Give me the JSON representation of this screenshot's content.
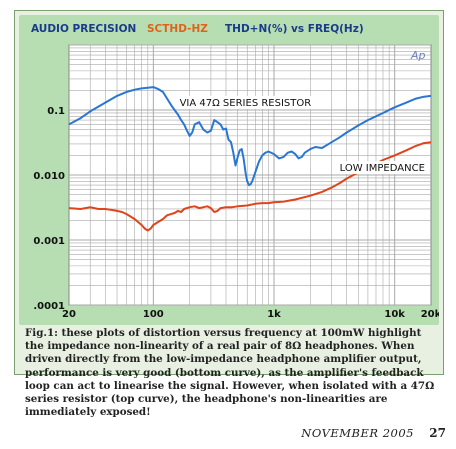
{
  "header": {
    "brand": "AUDIO PRECISION",
    "code": "SCTHD-HZ",
    "title": "THD+N(%) vs FREQ(Hz)"
  },
  "logo_text": "Ap",
  "caption": "Fig.1: these plots of distortion versus frequency at 100mW highlight the impedance non-linearity of a real pair of 8Ω headphones. When driven directly from the low-impedance headphone amplifier output, performance is very good (bottom curve), as the amplifier's feedback loop can act to linearise the signal. However, when isolated with a 47Ω series resistor (top curve), the headphone's non-linearities are immediately exposed!",
  "footer": {
    "date": "NOVEMBER 2005",
    "page": "27"
  },
  "colors": {
    "panel_bg": "#b6deb2",
    "plot_bg": "#ffffff",
    "grid": "#a9a9a9",
    "series_top": "#2a76d2",
    "series_bottom": "#e0441a",
    "header_blue": "#1a3a8a",
    "header_orange": "#e0621a"
  },
  "chart_data": {
    "type": "line",
    "x_scale": "log",
    "y_scale": "log",
    "xlim": [
      20,
      20000
    ],
    "ylim": [
      0.0001,
      1
    ],
    "x_tick_labels": [
      {
        "value": 20,
        "label": "20"
      },
      {
        "value": 100,
        "label": "100"
      },
      {
        "value": 1000,
        "label": "1k"
      },
      {
        "value": 10000,
        "label": "10k"
      },
      {
        "value": 20000,
        "label": "20k"
      }
    ],
    "y_tick_labels": [
      {
        "value": 0.1,
        "label": "0.1"
      },
      {
        "value": 0.01,
        "label": "0.010"
      },
      {
        "value": 0.001,
        "label": "0.001"
      },
      {
        "value": 0.0001,
        "label": ".0001"
      }
    ],
    "grid": true,
    "series": [
      {
        "name": "VIA 47Ω SERIES RESISTOR",
        "color": "#2a76d2",
        "points": [
          [
            20,
            0.06
          ],
          [
            25,
            0.075
          ],
          [
            30,
            0.095
          ],
          [
            40,
            0.13
          ],
          [
            50,
            0.165
          ],
          [
            60,
            0.19
          ],
          [
            70,
            0.205
          ],
          [
            80,
            0.215
          ],
          [
            90,
            0.22
          ],
          [
            100,
            0.225
          ],
          [
            110,
            0.21
          ],
          [
            120,
            0.19
          ],
          [
            130,
            0.15
          ],
          [
            140,
            0.12
          ],
          [
            150,
            0.1
          ],
          [
            160,
            0.085
          ],
          [
            170,
            0.07
          ],
          [
            180,
            0.06
          ],
          [
            190,
            0.048
          ],
          [
            200,
            0.04
          ],
          [
            210,
            0.045
          ],
          [
            220,
            0.06
          ],
          [
            240,
            0.065
          ],
          [
            260,
            0.05
          ],
          [
            280,
            0.045
          ],
          [
            300,
            0.048
          ],
          [
            320,
            0.07
          ],
          [
            340,
            0.065
          ],
          [
            360,
            0.06
          ],
          [
            380,
            0.05
          ],
          [
            400,
            0.052
          ],
          [
            420,
            0.035
          ],
          [
            440,
            0.032
          ],
          [
            460,
            0.022
          ],
          [
            480,
            0.014
          ],
          [
            500,
            0.019
          ],
          [
            520,
            0.024
          ],
          [
            540,
            0.025
          ],
          [
            560,
            0.018
          ],
          [
            580,
            0.011
          ],
          [
            600,
            0.008
          ],
          [
            620,
            0.007
          ],
          [
            640,
            0.0072
          ],
          [
            660,
            0.008
          ],
          [
            700,
            0.011
          ],
          [
            750,
            0.016
          ],
          [
            800,
            0.02
          ],
          [
            850,
            0.022
          ],
          [
            900,
            0.023
          ],
          [
            1000,
            0.021
          ],
          [
            1100,
            0.018
          ],
          [
            1200,
            0.019
          ],
          [
            1300,
            0.022
          ],
          [
            1400,
            0.023
          ],
          [
            1500,
            0.021
          ],
          [
            1600,
            0.018
          ],
          [
            1700,
            0.019
          ],
          [
            1800,
            0.022
          ],
          [
            2000,
            0.025
          ],
          [
            2200,
            0.027
          ],
          [
            2500,
            0.026
          ],
          [
            3000,
            0.032
          ],
          [
            3500,
            0.038
          ],
          [
            4000,
            0.045
          ],
          [
            5000,
            0.058
          ],
          [
            6000,
            0.07
          ],
          [
            8000,
            0.09
          ],
          [
            10000,
            0.11
          ],
          [
            12500,
            0.13
          ],
          [
            15000,
            0.15
          ],
          [
            17500,
            0.16
          ],
          [
            20000,
            0.165
          ]
        ]
      },
      {
        "name": "LOW IMPEDANCE",
        "color": "#e0441a",
        "points": [
          [
            20,
            0.0031
          ],
          [
            25,
            0.003
          ],
          [
            30,
            0.0032
          ],
          [
            35,
            0.003
          ],
          [
            40,
            0.003
          ],
          [
            45,
            0.0029
          ],
          [
            50,
            0.0028
          ],
          [
            55,
            0.0027
          ],
          [
            60,
            0.0025
          ],
          [
            70,
            0.0021
          ],
          [
            80,
            0.0017
          ],
          [
            85,
            0.0015
          ],
          [
            90,
            0.0014
          ],
          [
            95,
            0.0015
          ],
          [
            100,
            0.0017
          ],
          [
            110,
            0.0019
          ],
          [
            120,
            0.0021
          ],
          [
            130,
            0.0024
          ],
          [
            140,
            0.0025
          ],
          [
            150,
            0.0026
          ],
          [
            160,
            0.0028
          ],
          [
            170,
            0.0027
          ],
          [
            180,
            0.003
          ],
          [
            200,
            0.0032
          ],
          [
            220,
            0.0033
          ],
          [
            240,
            0.0031
          ],
          [
            260,
            0.0032
          ],
          [
            280,
            0.0033
          ],
          [
            300,
            0.0031
          ],
          [
            320,
            0.0027
          ],
          [
            340,
            0.0028
          ],
          [
            360,
            0.0031
          ],
          [
            400,
            0.0032
          ],
          [
            450,
            0.0032
          ],
          [
            500,
            0.0033
          ],
          [
            600,
            0.0034
          ],
          [
            700,
            0.0036
          ],
          [
            800,
            0.0037
          ],
          [
            900,
            0.0037
          ],
          [
            1000,
            0.0038
          ],
          [
            1200,
            0.0039
          ],
          [
            1500,
            0.0042
          ],
          [
            2000,
            0.0048
          ],
          [
            2500,
            0.0055
          ],
          [
            3000,
            0.0064
          ],
          [
            3500,
            0.0075
          ],
          [
            4000,
            0.0088
          ],
          [
            5000,
            0.011
          ],
          [
            6000,
            0.013
          ],
          [
            7000,
            0.015
          ],
          [
            8000,
            0.017
          ],
          [
            10000,
            0.02
          ],
          [
            12500,
            0.024
          ],
          [
            15000,
            0.028
          ],
          [
            17500,
            0.031
          ],
          [
            20000,
            0.032
          ]
        ]
      }
    ]
  }
}
